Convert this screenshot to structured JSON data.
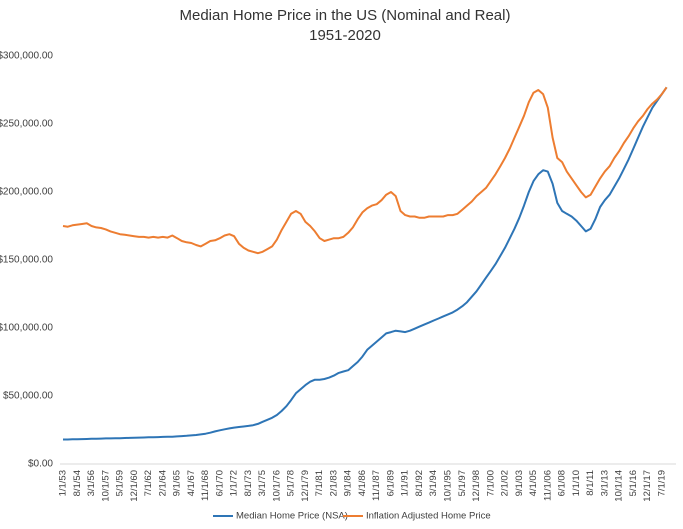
{
  "chart_data": {
    "type": "line",
    "title": "Median Home Price in the US (Nominal and Real)",
    "subtitle": "1951-2020",
    "categories": [
      "1/1/53",
      null,
      null,
      "8/1/54",
      null,
      null,
      "3/1/56",
      null,
      null,
      "10/1/57",
      null,
      null,
      "5/1/59",
      null,
      null,
      "12/1/60",
      null,
      null,
      "7/1/62",
      null,
      null,
      "2/1/64",
      null,
      null,
      "9/1/65",
      null,
      null,
      "4/1/67",
      null,
      null,
      "11/1/68",
      null,
      null,
      "6/1/70",
      null,
      null,
      "1/1/72",
      null,
      null,
      "8/1/73",
      null,
      null,
      "3/1/75",
      null,
      null,
      "10/1/76",
      null,
      null,
      "5/1/78",
      null,
      null,
      "12/1/79",
      null,
      null,
      "7/1/81",
      null,
      null,
      "2/1/83",
      null,
      null,
      "9/1/84",
      null,
      null,
      "4/1/86",
      null,
      null,
      "11/1/87",
      null,
      null,
      "6/1/89",
      null,
      null,
      "1/1/91",
      null,
      null,
      "8/1/92",
      null,
      null,
      "3/1/94",
      null,
      null,
      "10/1/95",
      null,
      null,
      "5/1/97",
      null,
      null,
      "12/1/98",
      null,
      null,
      "7/1/00",
      null,
      null,
      "2/1/02",
      null,
      null,
      "9/1/03",
      null,
      null,
      "4/1/05",
      null,
      null,
      "11/1/06",
      null,
      null,
      "6/1/08",
      null,
      null,
      "1/1/10",
      null,
      null,
      "8/1/11",
      null,
      null,
      "3/1/13",
      null,
      null,
      "10/1/14",
      null,
      null,
      "5/1/16",
      null,
      null,
      "12/1/17",
      null,
      null,
      "7/1/19",
      null
    ],
    "series": [
      {
        "name": "Median Home Price (NSA)",
        "color": "#2e75b6",
        "values": [
          18000,
          18000,
          18200,
          18200,
          18300,
          18400,
          18500,
          18600,
          18700,
          18800,
          18800,
          18900,
          19000,
          19100,
          19200,
          19300,
          19400,
          19500,
          19600,
          19700,
          19800,
          19900,
          20000,
          20100,
          20300,
          20500,
          20700,
          21000,
          21300,
          21800,
          22300,
          23000,
          24000,
          24800,
          25500,
          26200,
          26800,
          27200,
          27600,
          28000,
          28500,
          29500,
          31000,
          32500,
          34000,
          36000,
          39000,
          42500,
          47000,
          52000,
          55000,
          58000,
          60500,
          62000,
          62000,
          62500,
          63500,
          65000,
          67000,
          68000,
          69000,
          72000,
          75000,
          79000,
          84000,
          87000,
          90000,
          93000,
          96000,
          97000,
          98000,
          97500,
          97000,
          98000,
          99500,
          101000,
          102500,
          104000,
          105500,
          107000,
          108500,
          110000,
          111500,
          113500,
          116000,
          119000,
          123000,
          127000,
          132000,
          137000,
          142000,
          147000,
          153000,
          159000,
          166000,
          173000,
          181000,
          190000,
          200000,
          208000,
          213000,
          216000,
          215000,
          206000,
          192000,
          186000,
          184000,
          182000,
          179000,
          175000,
          171000,
          173000,
          180000,
          189000,
          194000,
          198000,
          204000,
          210000,
          217000,
          224000,
          232000,
          240000,
          248000,
          255000,
          262000,
          267000,
          272000,
          277000
        ]
      },
      {
        "name": "Inflation Adjusted Home Price",
        "color": "#ed7d31",
        "values": [
          175000,
          174500,
          175500,
          176000,
          176500,
          177000,
          175000,
          174000,
          173500,
          172500,
          171000,
          170000,
          169000,
          168500,
          168000,
          167500,
          167000,
          167000,
          166500,
          167000,
          166500,
          167000,
          166500,
          168000,
          166000,
          164000,
          163000,
          162500,
          161000,
          160000,
          162000,
          164000,
          164500,
          166000,
          168000,
          169000,
          167500,
          162000,
          159000,
          157000,
          156000,
          155000,
          156000,
          158000,
          160000,
          165000,
          172000,
          178000,
          184000,
          186000,
          184000,
          178000,
          175000,
          171000,
          166000,
          164000,
          165000,
          166000,
          166000,
          167000,
          170000,
          174000,
          180000,
          185000,
          188000,
          190000,
          191000,
          194000,
          198000,
          200000,
          197000,
          186000,
          183000,
          182000,
          182000,
          181000,
          181000,
          182000,
          182000,
          182000,
          182000,
          183000,
          183000,
          184000,
          187000,
          190000,
          193000,
          197000,
          200000,
          203000,
          208000,
          213000,
          219000,
          225000,
          232000,
          240000,
          248000,
          256000,
          266000,
          273000,
          275000,
          272000,
          262000,
          240000,
          225000,
          222000,
          215000,
          210000,
          205000,
          200000,
          196000,
          198000,
          204000,
          210000,
          215000,
          219000,
          225000,
          230000,
          236000,
          241000,
          247000,
          252000,
          256000,
          261000,
          265000,
          268000,
          272000,
          277000
        ]
      }
    ],
    "ylim": [
      0,
      300000
    ],
    "yticks": [
      {
        "value": 0,
        "label": "$0.00"
      },
      {
        "value": 50000,
        "label": "$50,000.00"
      },
      {
        "value": 100000,
        "label": "$100,000.00"
      },
      {
        "value": 150000,
        "label": "$150,000.00"
      },
      {
        "value": 200000,
        "label": "$200,000.00"
      },
      {
        "value": 250000,
        "label": "$250,000.00"
      },
      {
        "value": 300000,
        "label": "$300,000.00"
      }
    ],
    "grid": false,
    "legend": "bottom"
  }
}
